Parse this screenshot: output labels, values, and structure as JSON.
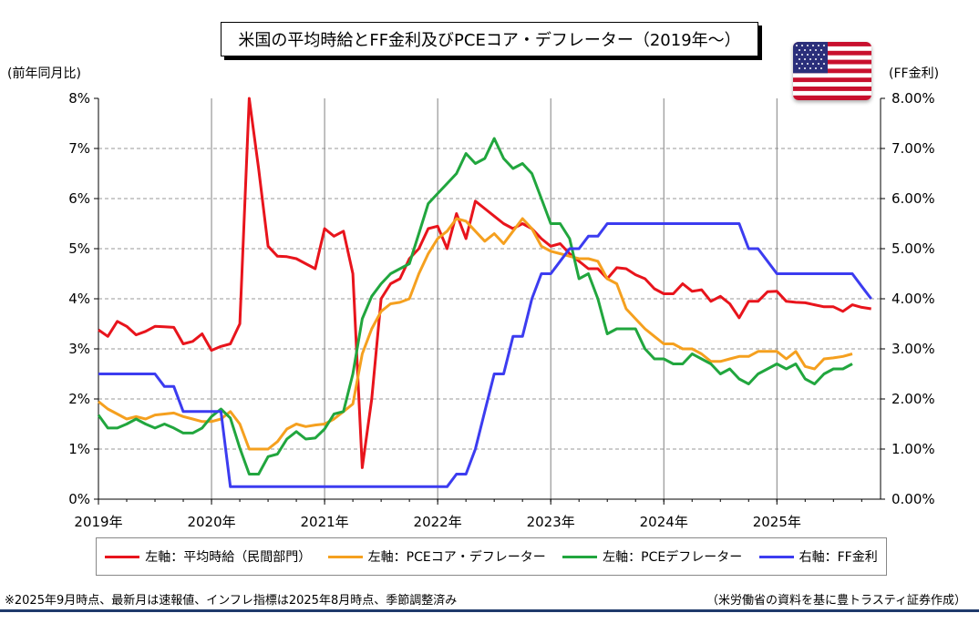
{
  "title": "米国の平均時給とFF金利及びPCEコア・デフレーター（2019年～）",
  "left_axis_unit": "(前年同月比)",
  "right_axis_unit": "(FF金利)",
  "flag_icon": "us-flag-icon",
  "footnote": "※2025年9月時点、最新月は速報値、インフレ指標は2025年8月時点、季節調整済み",
  "source": "（米労働省の資料を基に豊トラスティ証券作成）",
  "colors": {
    "wages": "#e8141c",
    "core_pce": "#f5a01f",
    "pce": "#21a63e",
    "ff_rate": "#3c3cf0",
    "grid": "#999999"
  },
  "chart_data": {
    "type": "line",
    "title": "米国の平均時給とFF金利及びPCEコア・デフレーター（2019年～）",
    "x_start": "2019-01",
    "x_end": "2025-12",
    "x_labels": [
      "2019年",
      "2020年",
      "2021年",
      "2022年",
      "2023年",
      "2024年",
      "2025年"
    ],
    "left_axis": {
      "label": "(前年同月比)",
      "ylim": [
        0,
        8
      ],
      "ticks": [
        "0%",
        "1%",
        "2%",
        "3%",
        "4%",
        "5%",
        "6%",
        "7%",
        "8%"
      ]
    },
    "right_axis": {
      "label": "(FF金利)",
      "ylim": [
        0,
        8
      ],
      "ticks": [
        "0.00%",
        "1.00%",
        "2.00%",
        "3.00%",
        "4.00%",
        "5.00%",
        "6.00%",
        "7.00%",
        "8.00%"
      ]
    },
    "grid": "vertical and horizontal",
    "legend_position": "bottom",
    "series": [
      {
        "name": "左軸：平均時給（民間部門）",
        "axis": "left",
        "start": "2019-01",
        "values": [
          3.38,
          3.25,
          3.55,
          3.45,
          3.28,
          3.35,
          3.45,
          3.44,
          3.43,
          3.1,
          3.15,
          3.3,
          2.97,
          3.05,
          3.1,
          3.5,
          8.0,
          6.6,
          5.05,
          4.85,
          4.84,
          4.8,
          4.7,
          4.6,
          5.4,
          5.25,
          5.35,
          4.5,
          0.63,
          2.0,
          4.0,
          4.3,
          4.4,
          4.8,
          5.0,
          5.4,
          5.45,
          5.0,
          5.7,
          5.2,
          5.95,
          5.8,
          5.65,
          5.5,
          5.4,
          5.5,
          5.4,
          5.2,
          5.05,
          5.1,
          4.9,
          4.75,
          4.6,
          4.6,
          4.4,
          4.62,
          4.6,
          4.48,
          4.4,
          4.2,
          4.1,
          4.1,
          4.3,
          4.15,
          4.18,
          3.95,
          4.05,
          3.9,
          3.62,
          3.95,
          3.95,
          4.14,
          4.15,
          3.95,
          3.93,
          3.92,
          3.88,
          3.84,
          3.84,
          3.75,
          3.88,
          3.83,
          3.8
        ]
      },
      {
        "name": "左軸：PCEコア・デフレーター",
        "axis": "left",
        "start": "2019-01",
        "values": [
          1.95,
          1.8,
          1.7,
          1.6,
          1.65,
          1.6,
          1.68,
          1.7,
          1.72,
          1.65,
          1.6,
          1.55,
          1.55,
          1.6,
          1.75,
          1.5,
          1.0,
          1.0,
          1.0,
          1.15,
          1.4,
          1.5,
          1.45,
          1.48,
          1.5,
          1.6,
          1.75,
          1.9,
          2.9,
          3.4,
          3.75,
          3.9,
          3.93,
          4.0,
          4.5,
          4.9,
          5.2,
          5.35,
          5.6,
          5.55,
          5.35,
          5.15,
          5.3,
          5.1,
          5.35,
          5.6,
          5.4,
          5.05,
          4.95,
          4.9,
          4.85,
          4.8,
          4.8,
          4.75,
          4.4,
          4.3,
          3.8,
          3.6,
          3.4,
          3.25,
          3.1,
          3.1,
          3.0,
          3.0,
          2.9,
          2.75,
          2.75,
          2.8,
          2.85,
          2.85,
          2.95,
          2.95,
          2.95,
          2.8,
          2.95,
          2.65,
          2.6,
          2.8,
          2.82,
          2.85,
          2.9
        ]
      },
      {
        "name": "左軸：PCEデフレーター",
        "axis": "left",
        "start": "2019-01",
        "values": [
          1.68,
          1.42,
          1.42,
          1.5,
          1.6,
          1.5,
          1.42,
          1.5,
          1.42,
          1.32,
          1.32,
          1.42,
          1.65,
          1.8,
          1.62,
          1.02,
          0.5,
          0.5,
          0.85,
          0.9,
          1.2,
          1.35,
          1.2,
          1.22,
          1.4,
          1.7,
          1.75,
          2.5,
          3.6,
          4.05,
          4.3,
          4.5,
          4.6,
          4.7,
          5.3,
          5.9,
          6.1,
          6.3,
          6.5,
          6.9,
          6.7,
          6.8,
          7.2,
          6.8,
          6.6,
          6.7,
          6.5,
          6.0,
          5.5,
          5.5,
          5.2,
          4.4,
          4.5,
          4.0,
          3.3,
          3.4,
          3.4,
          3.4,
          3.0,
          2.8,
          2.8,
          2.7,
          2.7,
          2.9,
          2.8,
          2.7,
          2.5,
          2.6,
          2.4,
          2.3,
          2.5,
          2.6,
          2.7,
          2.6,
          2.7,
          2.4,
          2.3,
          2.5,
          2.6,
          2.6,
          2.7
        ]
      },
      {
        "name": "右軸：FF金利",
        "axis": "right",
        "start": "2019-01",
        "values": [
          2.5,
          2.5,
          2.5,
          2.5,
          2.5,
          2.5,
          2.5,
          2.25,
          2.25,
          1.75,
          1.75,
          1.75,
          1.75,
          1.75,
          0.25,
          0.25,
          0.25,
          0.25,
          0.25,
          0.25,
          0.25,
          0.25,
          0.25,
          0.25,
          0.25,
          0.25,
          0.25,
          0.25,
          0.25,
          0.25,
          0.25,
          0.25,
          0.25,
          0.25,
          0.25,
          0.25,
          0.25,
          0.25,
          0.5,
          0.5,
          1.0,
          1.75,
          2.5,
          2.5,
          3.25,
          3.25,
          4.0,
          4.5,
          4.5,
          4.75,
          5.0,
          5.0,
          5.25,
          5.25,
          5.5,
          5.5,
          5.5,
          5.5,
          5.5,
          5.5,
          5.5,
          5.5,
          5.5,
          5.5,
          5.5,
          5.5,
          5.5,
          5.5,
          5.5,
          5.0,
          5.0,
          4.75,
          4.5,
          4.5,
          4.5,
          4.5,
          4.5,
          4.5,
          4.5,
          4.5,
          4.5,
          4.25,
          4.0
        ]
      }
    ]
  }
}
